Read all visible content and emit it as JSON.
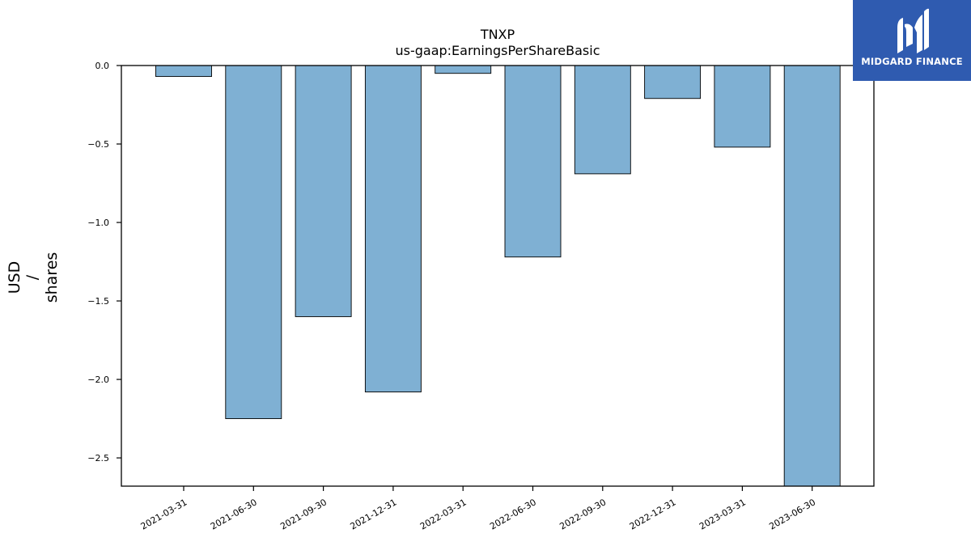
{
  "chart_data": {
    "type": "bar",
    "title": "TNXP",
    "subtitle": "us-gaap:EarningsPerShareBasic",
    "xlabel": "",
    "ylabel_lines": [
      "USD",
      "/",
      "shares"
    ],
    "categories": [
      "2021-03-31",
      "2021-06-30",
      "2021-09-30",
      "2021-12-31",
      "2022-03-31",
      "2022-06-30",
      "2022-09-30",
      "2022-12-31",
      "2023-03-31",
      "2023-06-30"
    ],
    "values": [
      -0.07,
      -2.25,
      -1.6,
      -2.08,
      -0.05,
      -1.22,
      -0.69,
      -0.21,
      -0.52,
      -2.7
    ],
    "ylim": [
      -2.68,
      0.0
    ],
    "yticks": [
      0.0,
      -0.5,
      -1.0,
      -1.5,
      -2.0,
      -2.5
    ],
    "ytick_labels": [
      "0.0",
      "−0.5",
      "−1.0",
      "−1.5",
      "−2.0",
      "−2.5"
    ],
    "grid": false,
    "bar_color": "#7fb0d3",
    "edge_color": "#000000"
  },
  "logo": {
    "text": "MIDGARD FINANCE",
    "background": "#2f5bb0",
    "icon": "midgard-logo-icon"
  }
}
